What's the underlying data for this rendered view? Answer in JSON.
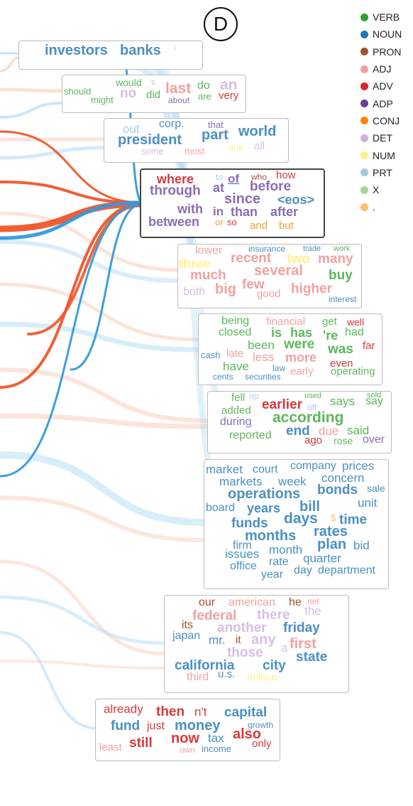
{
  "panel_label": "D",
  "legend": [
    {
      "tag": "VERB",
      "color": "#2ca02c"
    },
    {
      "tag": "NOUN",
      "color": "#1f77b4"
    },
    {
      "tag": "PRON",
      "color": "#a0522d"
    },
    {
      "tag": "ADJ",
      "color": "#f4a0a0"
    },
    {
      "tag": "ADV",
      "color": "#d62728"
    },
    {
      "tag": "ADP",
      "color": "#6a3d9a"
    },
    {
      "tag": "CONJ",
      "color": "#ff7f0e"
    },
    {
      "tag": "DET",
      "color": "#cbb2d9"
    },
    {
      "tag": "NUM",
      "color": "#fff08a"
    },
    {
      "tag": "PRT",
      "color": "#9ecae1"
    },
    {
      "tag": "X",
      "color": "#a6d78f"
    },
    {
      "tag": ".",
      "color": "#ffbf66"
    }
  ],
  "pos_colors": {
    "VERB": "#5cb85c",
    "NOUN": "#4a90c2",
    "PRON": "#a0522d",
    "ADJ": "#f4a0a0",
    "ADV": "#d9383a",
    "ADP": "#8a6db8",
    "CONJ": "#f0a030",
    "DET": "#d6bfe3",
    "NUM": "#fff08a",
    "PRT": "#a8cfe8",
    "X": "#a6d78f",
    "PUNCT": "#ffbf66"
  },
  "clusters": [
    {
      "id": "c1",
      "words": [
        {
          "t": "investors",
          "pos": "NOUN"
        },
        {
          "t": "banks",
          "pos": "NOUN"
        },
        {
          "t": "i",
          "pos": "PRT"
        }
      ]
    },
    {
      "id": "c2",
      "words": [
        {
          "t": "would",
          "pos": "VERB"
        },
        {
          "t": "'s",
          "pos": "PRT"
        },
        {
          "t": "should",
          "pos": "VERB"
        },
        {
          "t": "might",
          "pos": "VERB"
        },
        {
          "t": "no",
          "pos": "DET"
        },
        {
          "t": "did",
          "pos": "VERB"
        },
        {
          "t": "last",
          "pos": "ADJ"
        },
        {
          "t": "about",
          "pos": "ADP"
        },
        {
          "t": "do",
          "pos": "VERB"
        },
        {
          "t": "are",
          "pos": "VERB"
        },
        {
          "t": "an",
          "pos": "DET"
        },
        {
          "t": "very",
          "pos": "ADV"
        }
      ]
    },
    {
      "id": "c3",
      "words": [
        {
          "t": "out",
          "pos": "PRT"
        },
        {
          "t": "corp.",
          "pos": "NOUN"
        },
        {
          "t": "that",
          "pos": "ADP"
        },
        {
          "t": "president",
          "pos": "NOUN"
        },
        {
          "t": "some",
          "pos": "DET"
        },
        {
          "t": "most",
          "pos": "ADJ"
        },
        {
          "t": "part",
          "pos": "NOUN"
        },
        {
          "t": "world",
          "pos": "NOUN"
        },
        {
          "t": "one",
          "pos": "NUM"
        },
        {
          "t": "all",
          "pos": "DET"
        }
      ]
    },
    {
      "id": "c4",
      "words": [
        {
          "t": "where",
          "pos": "ADV"
        },
        {
          "t": "to",
          "pos": "PRT"
        },
        {
          "t": "of",
          "pos": "ADP"
        },
        {
          "t": "who",
          "pos": "PRON"
        },
        {
          "t": "how",
          "pos": "ADV"
        },
        {
          "t": "through",
          "pos": "ADP"
        },
        {
          "t": "at",
          "pos": "ADP"
        },
        {
          "t": "before",
          "pos": "ADP"
        },
        {
          "t": "since",
          "pos": "ADP"
        },
        {
          "t": "<eos>",
          "pos": "NOUN"
        },
        {
          "t": "with",
          "pos": "ADP"
        },
        {
          "t": "in",
          "pos": "ADP"
        },
        {
          "t": "than",
          "pos": "ADP"
        },
        {
          "t": "after",
          "pos": "ADP"
        },
        {
          "t": "between",
          "pos": "ADP"
        },
        {
          "t": "or",
          "pos": "CONJ"
        },
        {
          "t": "so",
          "pos": "ADV"
        },
        {
          "t": "and",
          "pos": "CONJ"
        },
        {
          "t": "but",
          "pos": "CONJ"
        }
      ]
    },
    {
      "id": "c5",
      "words": [
        {
          "t": "lower",
          "pos": "ADJ"
        },
        {
          "t": "insurance",
          "pos": "NOUN"
        },
        {
          "t": "trade",
          "pos": "NOUN"
        },
        {
          "t": "work",
          "pos": "VERB"
        },
        {
          "t": "three",
          "pos": "NUM"
        },
        {
          "t": "recent",
          "pos": "ADJ"
        },
        {
          "t": "two",
          "pos": "NUM"
        },
        {
          "t": "many",
          "pos": "ADJ"
        },
        {
          "t": "much",
          "pos": "ADJ"
        },
        {
          "t": "several",
          "pos": "ADJ"
        },
        {
          "t": "buy",
          "pos": "VERB"
        },
        {
          "t": "few",
          "pos": "ADJ"
        },
        {
          "t": "big",
          "pos": "ADJ"
        },
        {
          "t": "higher",
          "pos": "ADJ"
        },
        {
          "t": "both",
          "pos": "DET"
        },
        {
          "t": "good",
          "pos": "ADJ"
        },
        {
          "t": "interest",
          "pos": "NOUN"
        }
      ]
    },
    {
      "id": "c6",
      "words": [
        {
          "t": "being",
          "pos": "VERB"
        },
        {
          "t": "financial",
          "pos": "ADJ"
        },
        {
          "t": "get",
          "pos": "VERB"
        },
        {
          "t": "well",
          "pos": "ADV"
        },
        {
          "t": "closed",
          "pos": "VERB"
        },
        {
          "t": "is",
          "pos": "VERB"
        },
        {
          "t": "has",
          "pos": "VERB"
        },
        {
          "t": "'re",
          "pos": "VERB"
        },
        {
          "t": "had",
          "pos": "VERB"
        },
        {
          "t": "been",
          "pos": "VERB"
        },
        {
          "t": "were",
          "pos": "VERB"
        },
        {
          "t": "was",
          "pos": "VERB"
        },
        {
          "t": "far",
          "pos": "ADV"
        },
        {
          "t": "cash",
          "pos": "NOUN"
        },
        {
          "t": "late",
          "pos": "ADJ"
        },
        {
          "t": "less",
          "pos": "ADJ"
        },
        {
          "t": "more",
          "pos": "ADJ"
        },
        {
          "t": "have",
          "pos": "VERB"
        },
        {
          "t": "law",
          "pos": "NOUN"
        },
        {
          "t": "early",
          "pos": "ADJ"
        },
        {
          "t": "even",
          "pos": "ADV"
        },
        {
          "t": "cents",
          "pos": "NOUN"
        },
        {
          "t": "securities",
          "pos": "NOUN"
        },
        {
          "t": "operating",
          "pos": "VERB"
        }
      ]
    },
    {
      "id": "c7",
      "words": [
        {
          "t": "fell",
          "pos": "VERB"
        },
        {
          "t": "up",
          "pos": "PRT"
        },
        {
          "t": "used",
          "pos": "VERB"
        },
        {
          "t": "sold",
          "pos": "VERB"
        },
        {
          "t": "added",
          "pos": "VERB"
        },
        {
          "t": "earlier",
          "pos": "ADV"
        },
        {
          "t": "off",
          "pos": "PRT"
        },
        {
          "t": "says",
          "pos": "VERB"
        },
        {
          "t": "say",
          "pos": "VERB"
        },
        {
          "t": "according",
          "pos": "VERB"
        },
        {
          "t": "during",
          "pos": "ADP"
        },
        {
          "t": "end",
          "pos": "NOUN"
        },
        {
          "t": "said",
          "pos": "VERB"
        },
        {
          "t": "reported",
          "pos": "VERB"
        },
        {
          "t": "due",
          "pos": "ADJ"
        },
        {
          "t": "ago",
          "pos": "ADV"
        },
        {
          "t": "rose",
          "pos": "VERB"
        },
        {
          "t": "over",
          "pos": "ADP"
        }
      ]
    },
    {
      "id": "c8",
      "words": [
        {
          "t": "market",
          "pos": "NOUN"
        },
        {
          "t": "court",
          "pos": "NOUN"
        },
        {
          "t": "company",
          "pos": "NOUN"
        },
        {
          "t": "prices",
          "pos": "NOUN"
        },
        {
          "t": "markets",
          "pos": "NOUN"
        },
        {
          "t": "week",
          "pos": "NOUN"
        },
        {
          "t": "concern",
          "pos": "NOUN"
        },
        {
          "t": "operations",
          "pos": "NOUN"
        },
        {
          "t": "bonds",
          "pos": "NOUN"
        },
        {
          "t": "sale",
          "pos": "NOUN"
        },
        {
          "t": "board",
          "pos": "NOUN"
        },
        {
          "t": "years",
          "pos": "NOUN"
        },
        {
          "t": "bill",
          "pos": "NOUN"
        },
        {
          "t": "unit",
          "pos": "NOUN"
        },
        {
          "t": "days",
          "pos": "NOUN"
        },
        {
          "t": "$",
          "pos": "PUNCT"
        },
        {
          "t": "time",
          "pos": "NOUN"
        },
        {
          "t": "funds",
          "pos": "NOUN"
        },
        {
          "t": "months",
          "pos": "NOUN"
        },
        {
          "t": "rates",
          "pos": "NOUN"
        },
        {
          "t": "firm",
          "pos": "NOUN"
        },
        {
          "t": "plan",
          "pos": "NOUN"
        },
        {
          "t": "bid",
          "pos": "NOUN"
        },
        {
          "t": "issues",
          "pos": "NOUN"
        },
        {
          "t": "month",
          "pos": "NOUN"
        },
        {
          "t": "quarter",
          "pos": "NOUN"
        },
        {
          "t": "rate",
          "pos": "NOUN"
        },
        {
          "t": "office",
          "pos": "NOUN"
        },
        {
          "t": "year",
          "pos": "NOUN"
        },
        {
          "t": "day",
          "pos": "NOUN"
        },
        {
          "t": "department",
          "pos": "NOUN"
        }
      ]
    },
    {
      "id": "c9",
      "words": [
        {
          "t": "our",
          "pos": "PRON"
        },
        {
          "t": "american",
          "pos": "ADJ"
        },
        {
          "t": "he",
          "pos": "PRON"
        },
        {
          "t": "net",
          "pos": "ADJ"
        },
        {
          "t": "federal",
          "pos": "ADJ"
        },
        {
          "t": "there",
          "pos": "DET"
        },
        {
          "t": "the",
          "pos": "DET"
        },
        {
          "t": "its",
          "pos": "PRON"
        },
        {
          "t": "another",
          "pos": "DET"
        },
        {
          "t": "friday",
          "pos": "NOUN"
        },
        {
          "t": "japan",
          "pos": "NOUN"
        },
        {
          "t": "mr.",
          "pos": "NOUN"
        },
        {
          "t": "it",
          "pos": "PRON"
        },
        {
          "t": "any",
          "pos": "DET"
        },
        {
          "t": "first",
          "pos": "ADJ"
        },
        {
          "t": "a",
          "pos": "DET"
        },
        {
          "t": "those",
          "pos": "DET"
        },
        {
          "t": "state",
          "pos": "NOUN"
        },
        {
          "t": "california",
          "pos": "NOUN"
        },
        {
          "t": "city",
          "pos": "NOUN"
        },
        {
          "t": "u.s.",
          "pos": "NOUN"
        },
        {
          "t": "third",
          "pos": "ADJ"
        },
        {
          "t": "million",
          "pos": "NUM"
        }
      ]
    },
    {
      "id": "c10",
      "words": [
        {
          "t": "already",
          "pos": "ADV"
        },
        {
          "t": "then",
          "pos": "ADV"
        },
        {
          "t": "n't",
          "pos": "ADV"
        },
        {
          "t": "capital",
          "pos": "NOUN"
        },
        {
          "t": "fund",
          "pos": "NOUN"
        },
        {
          "t": "just",
          "pos": "ADV"
        },
        {
          "t": "money",
          "pos": "NOUN"
        },
        {
          "t": "growth",
          "pos": "NOUN"
        },
        {
          "t": "now",
          "pos": "ADV"
        },
        {
          "t": "tax",
          "pos": "NOUN"
        },
        {
          "t": "also",
          "pos": "ADV"
        },
        {
          "t": "least",
          "pos": "ADJ"
        },
        {
          "t": "still",
          "pos": "ADV"
        },
        {
          "t": "own",
          "pos": "ADJ"
        },
        {
          "t": "income",
          "pos": "NOUN"
        },
        {
          "t": "only",
          "pos": "ADV"
        }
      ]
    }
  ]
}
